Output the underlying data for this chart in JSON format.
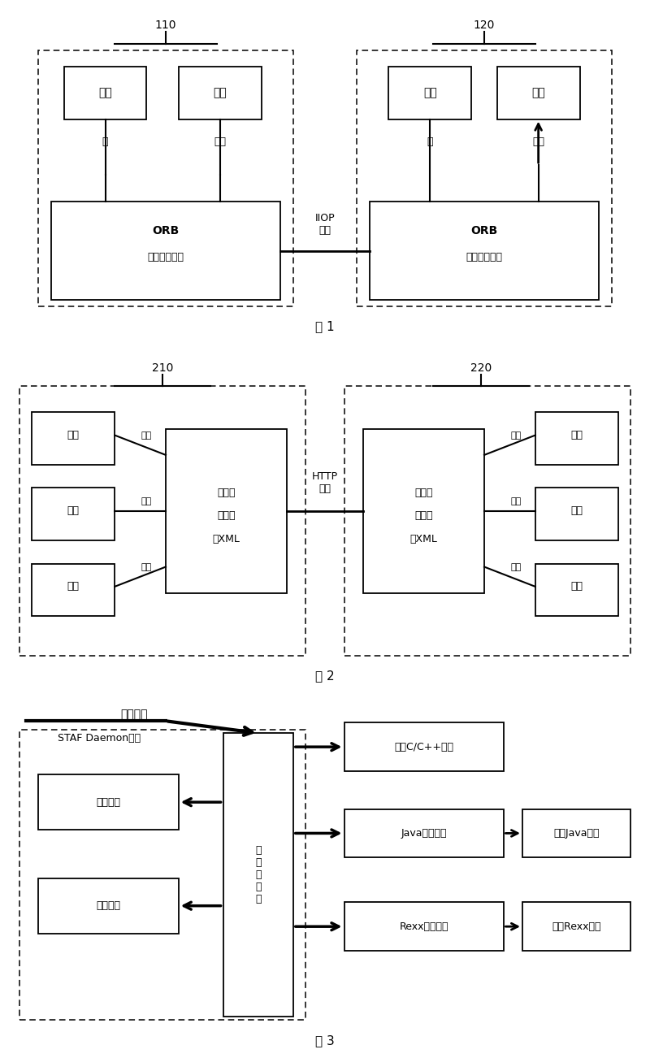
{
  "bg_color": "#ffffff",
  "fig1": {
    "label_110": "110",
    "label_120": "120",
    "fig_label": "图 1",
    "iiop_label": "IIOP\n协议",
    "left_stub": "桩",
    "left_skel": "骨架",
    "right_stub": "桩",
    "right_skel": "骨架",
    "orb_text": "ORB",
    "orb_sub": "对象请求代理",
    "client_text": "客户",
    "object_text": "对象"
  },
  "fig2": {
    "label_210": "210",
    "label_220": "220",
    "fig_label": "图 2",
    "http_label": "HTTP\n协议",
    "xml_line1": "可扩展",
    "xml_line2": "标记语",
    "xml_line3": "言XML",
    "data_text": "数据",
    "code_text": "代码"
  },
  "fig3": {
    "service_request": "服务请求",
    "staf_label": "STAF Daemon进程",
    "dispatcher_label": "服\n务\n分\n发\n层",
    "internal1_label": "内部服务",
    "internal2_label": "内部服务",
    "ext_cpp": "外部C/C++服务",
    "ext_java_proxy": "Java服务代理",
    "ext_java": "外部Java服务",
    "ext_rexx_proxy": "Rexx服务代理",
    "ext_rexx": "外部Rexx服务",
    "fig_label": "图 3"
  }
}
